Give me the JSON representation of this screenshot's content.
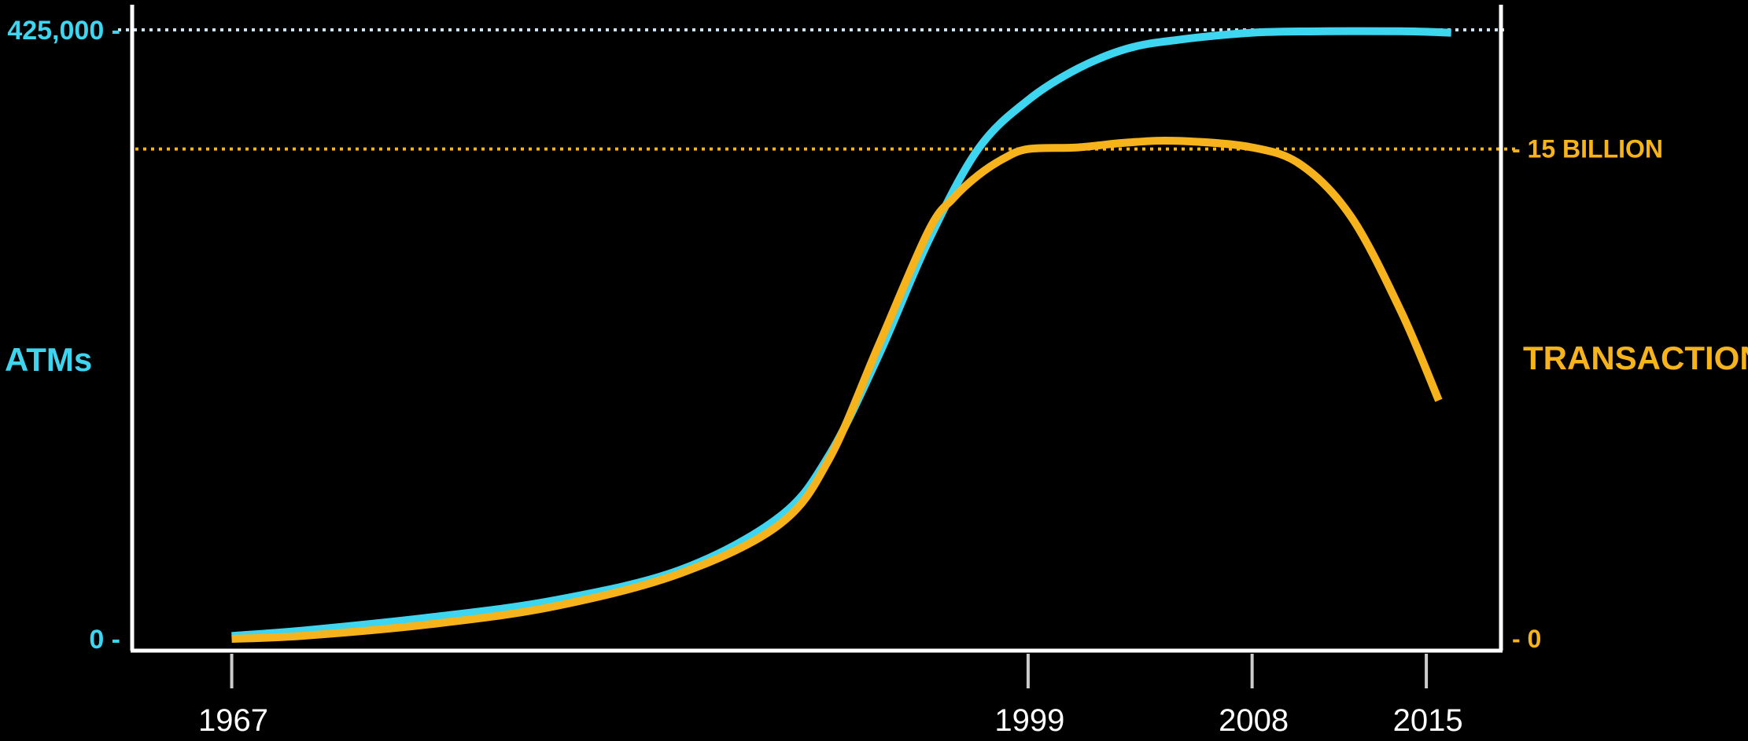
{
  "chart_data": {
    "type": "line",
    "title": "",
    "x_ticks": [
      "1967",
      "1999",
      "2008",
      "2015"
    ],
    "x_range": [
      1963,
      2018
    ],
    "left_axis": {
      "label": "ATMs",
      "ticks": [
        "0",
        "425,000"
      ],
      "tick_values": [
        0,
        425000
      ],
      "ylim": [
        0,
        425000
      ],
      "color": "#3dd5ef"
    },
    "right_axis": {
      "label": "TRANSACTIONS",
      "ticks": [
        "0",
        "15 BILLION"
      ],
      "tick_values": [
        0,
        15000000000
      ],
      "ylim": [
        0,
        18650000000
      ],
      "color": "#f6b31b"
    },
    "reference_lines": [
      {
        "axis": "left",
        "value": 425000,
        "style": "dotted",
        "color": "#cfe3f0"
      },
      {
        "axis": "right",
        "value": 15000000000,
        "style": "dotted",
        "color": "#f6b31b"
      }
    ],
    "series": [
      {
        "axis": "left",
        "color": "#3dd5ef",
        "x": [
          1967,
          1970,
          1975,
          1980,
          1985,
          1989,
          1991,
          1993,
          1995,
          1997,
          1999,
          2001,
          2003,
          2005,
          2008,
          2011,
          2014,
          2016
        ],
        "y": [
          2000,
          6000,
          15000,
          27000,
          48000,
          85000,
          128000,
          198000,
          278000,
          342000,
          376000,
          398000,
          412000,
          418000,
          423000,
          424000,
          424000,
          423000
        ]
      },
      {
        "axis": "right",
        "color": "#f6b31b",
        "x": [
          1967,
          1970,
          1975,
          1980,
          1985,
          1989,
          1991,
          1993,
          1995,
          1996,
          1997,
          1998,
          1999,
          2001,
          2003,
          2005,
          2008,
          2010,
          2012,
          2014,
          2015.5
        ],
        "y": [
          0,
          100000000,
          450000000,
          1000000000,
          2000000000,
          3500000000,
          5500000000,
          9000000000,
          12500000000,
          13500000000,
          14200000000,
          14700000000,
          15000000000,
          15050000000,
          15200000000,
          15250000000,
          15050000000,
          14500000000,
          12900000000,
          10000000000,
          7300000000
        ]
      }
    ]
  }
}
